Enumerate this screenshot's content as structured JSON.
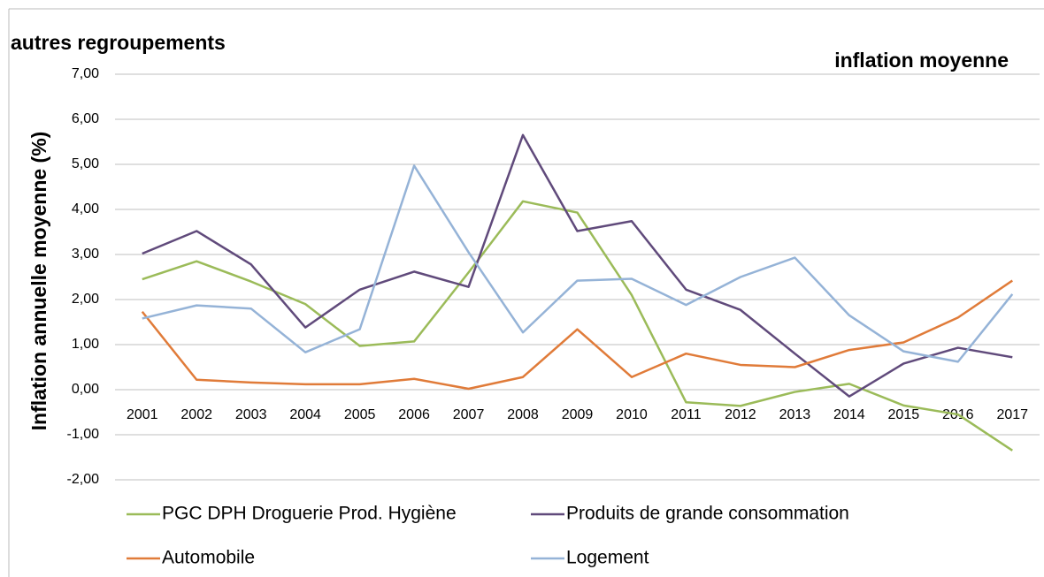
{
  "chart_data": {
    "type": "line",
    "title": "autres regroupements",
    "subtitle": "inflation moyenne",
    "y_label": "Inflation annuelle moyenne (%)",
    "categories": [
      "2001",
      "2002",
      "2003",
      "2004",
      "2005",
      "2006",
      "2007",
      "2008",
      "2009",
      "2010",
      "2011",
      "2012",
      "2013",
      "2014",
      "2015",
      "2016",
      "2017"
    ],
    "series": [
      {
        "name": "PGC DPH Droguerie Prod. Hygiène",
        "color": "#9bbb59",
        "values": [
          2.45,
          2.85,
          2.4,
          1.9,
          0.97,
          1.07,
          2.6,
          4.18,
          3.93,
          2.1,
          -0.28,
          -0.36,
          -0.05,
          0.13,
          -0.35,
          -0.55,
          -1.35
        ]
      },
      {
        "name": "Produits de grande consommation",
        "color": "#604a7b",
        "values": [
          3.02,
          3.52,
          2.78,
          1.38,
          2.22,
          2.62,
          2.28,
          5.65,
          3.52,
          3.74,
          2.22,
          1.77,
          0.8,
          -0.15,
          0.58,
          0.93,
          0.72
        ]
      },
      {
        "name": "Automobile",
        "color": "#e07b39",
        "values": [
          1.73,
          0.22,
          0.16,
          0.12,
          0.12,
          0.24,
          0.02,
          0.28,
          1.34,
          0.28,
          0.8,
          0.55,
          0.5,
          0.88,
          1.05,
          1.6,
          2.42
        ]
      },
      {
        "name": "Logement",
        "color": "#95b3d7",
        "values": [
          1.58,
          1.87,
          1.8,
          0.83,
          1.34,
          4.97,
          3.05,
          1.27,
          2.42,
          2.46,
          1.88,
          2.5,
          2.93,
          1.65,
          0.85,
          0.62,
          2.12
        ]
      }
    ],
    "ylim": [
      -2,
      7
    ],
    "yticks": [
      {
        "value": -2,
        "label": "-2,00"
      },
      {
        "value": -1,
        "label": "-1,00"
      },
      {
        "value": 0,
        "label": "0,00"
      },
      {
        "value": 1,
        "label": "1,00"
      },
      {
        "value": 2,
        "label": "2,00"
      },
      {
        "value": 3,
        "label": "3,00"
      },
      {
        "value": 4,
        "label": "4,00"
      },
      {
        "value": 5,
        "label": "5,00"
      },
      {
        "value": 6,
        "label": "6,00"
      },
      {
        "value": 7,
        "label": "7,00"
      }
    ],
    "grid": true
  }
}
